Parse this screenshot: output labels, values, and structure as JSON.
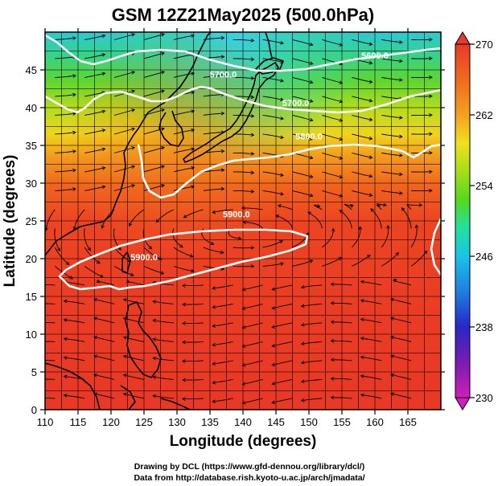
{
  "title": "GSM 12Z21May2025 (500.0hPa)",
  "map": {
    "xlabel": "Longitude (degrees)",
    "ylabel": "Latitude  (degrees)",
    "x_ticks": [
      "110",
      "115",
      "120",
      "125",
      "130",
      "135",
      "140",
      "145",
      "150",
      "155",
      "160",
      "165"
    ],
    "y_ticks": [
      "0",
      "5",
      "10",
      "15",
      "20",
      "25",
      "30",
      "35",
      "40",
      "45"
    ],
    "xlim": [
      110,
      170
    ],
    "ylim": [
      0,
      50
    ],
    "contour_labels": [
      {
        "text": "5900.0",
        "lon": 139,
        "lat": 25.5
      },
      {
        "text": "5900.0",
        "lon": 125,
        "lat": 19.8
      },
      {
        "text": "5800.0",
        "lon": 150,
        "lat": 35.8
      },
      {
        "text": "5700.0",
        "lon": 148,
        "lat": 40.2
      },
      {
        "text": "5600.0",
        "lon": 160,
        "lat": 46.5
      },
      {
        "text": "5700.0",
        "lon": 137,
        "lat": 44
      }
    ]
  },
  "colorbar": {
    "labels": [
      "270",
      "262",
      "254",
      "246",
      "238",
      "230"
    ],
    "min": 230,
    "max": 270,
    "colors": [
      "#d01fb8",
      "#7a1cb0",
      "#2727c8",
      "#1f7fe0",
      "#19c4e8",
      "#22e09e",
      "#55d81e",
      "#a8dc1a",
      "#f0e01e",
      "#f5a020",
      "#f06a1e",
      "#ee3b22",
      "#e83a2a"
    ]
  },
  "footer": {
    "line1": "Drawing by DCL (https://www.gfd-dennou.org/library/dcl/)",
    "line2": "Data from http://database.rish.kyoto-u.ac.jp/arch/jmadata/"
  }
}
